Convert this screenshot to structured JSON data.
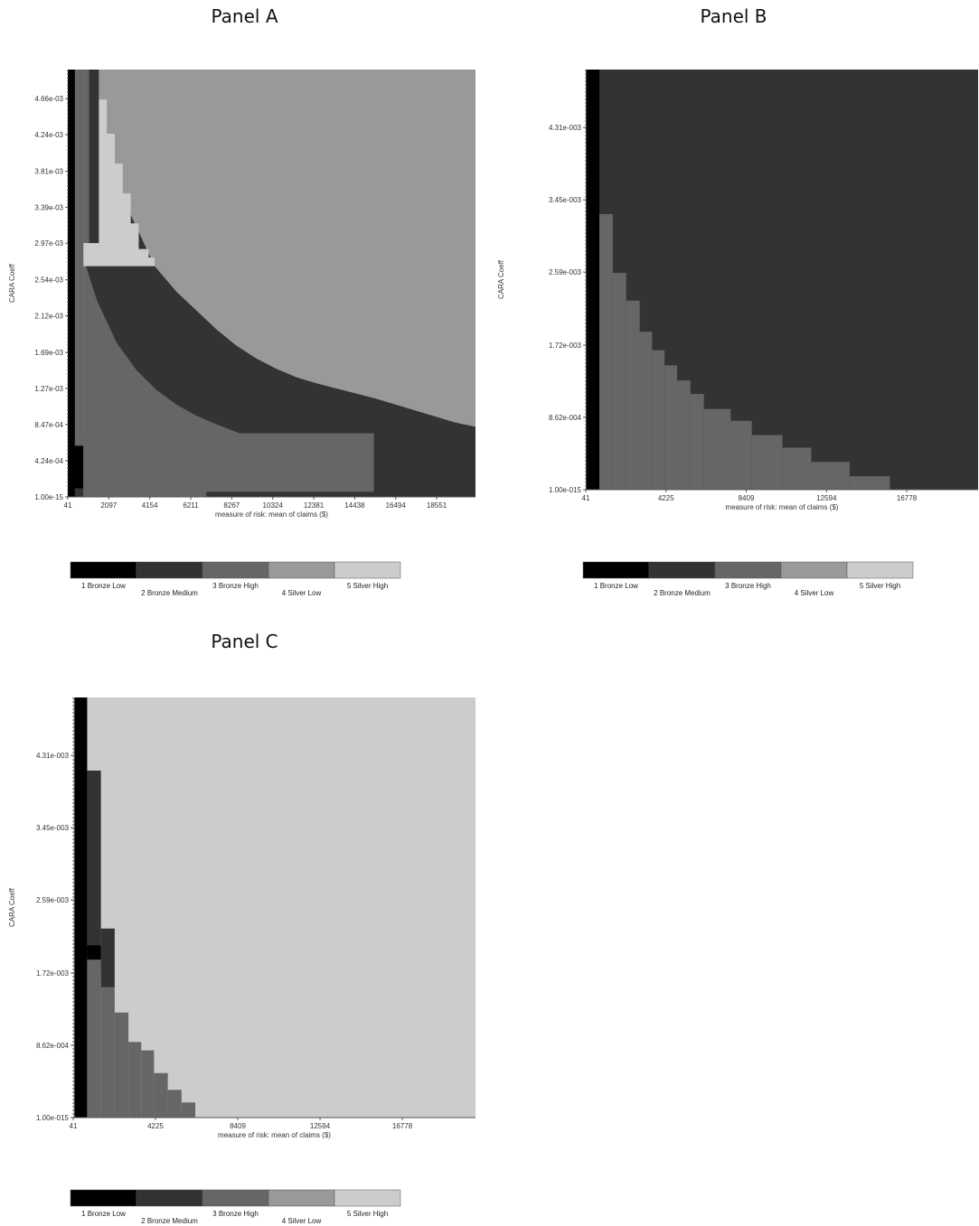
{
  "legend": {
    "levels": [
      {
        "code": 1,
        "label": "1 Bronze Low",
        "color": "#000000"
      },
      {
        "code": 2,
        "label": "2 Bronze Medium",
        "color": "#333333"
      },
      {
        "code": 3,
        "label": "3 Bronze High",
        "color": "#666666"
      },
      {
        "code": 4,
        "label": "4 Silver Low",
        "color": "#999999"
      },
      {
        "code": 5,
        "label": "5 Silver High",
        "color": "#cccccc"
      }
    ]
  },
  "chart_data": [
    {
      "type": "heatmap",
      "title": "Panel A",
      "xlabel": "measure of risk: mean of claims ($)",
      "ylabel": "CARA Coeff",
      "xlim": [
        41,
        20500
      ],
      "ylim": [
        0,
        0.005
      ],
      "x_ticks": [
        "41",
        "2097",
        "4154",
        "6211",
        "8267",
        "10324",
        "12381",
        "14438",
        "16494",
        "18551"
      ],
      "x_tick_values": [
        41,
        2097,
        4154,
        6211,
        8267,
        10324,
        12381,
        14438,
        16494,
        18551
      ],
      "y_ticks": [
        "1.00e-15",
        "4.24e-04",
        "8.47e-04",
        "1.27e-03",
        "1.69e-03",
        "2.12e-03",
        "2.54e-03",
        "2.97e-03",
        "3.39e-03",
        "3.81e-03",
        "4.24e-03",
        "4.66e-03"
      ],
      "y_tick_values": [
        0,
        0.000424,
        0.000847,
        0.00127,
        0.00169,
        0.00212,
        0.00254,
        0.00297,
        0.00339,
        0.00381,
        0.00424,
        0.00466
      ],
      "default_code": 4,
      "regions": [
        {
          "code": 1,
          "x0": 41,
          "x1": 400,
          "y0": 0,
          "y1": 0.005
        },
        {
          "code": 1,
          "x0": 41,
          "x1": 820,
          "y0": 0.0001,
          "y1": 0.0006
        },
        {
          "code": 3,
          "x0": 400,
          "x1": 820,
          "y0": 0.0006,
          "y1": 0.005
        },
        {
          "code": 2,
          "x0": 400,
          "x1": 820,
          "y0": 0,
          "y1": 0.0001
        },
        {
          "code": 3,
          "x0": 820,
          "x1": 15400,
          "y0": 0,
          "y1": 0.000745
        },
        {
          "code": 2,
          "x0": 7000,
          "x1": 15400,
          "y0": 0,
          "y1": 6e-05
        },
        {
          "code": 2,
          "x0": 15400,
          "x1": 20500,
          "y0": 0,
          "y1": 0.0001
        }
      ],
      "boundaries": [
        {
          "code": 5,
          "to": 4,
          "points": [
            [
              820,
              0.005
            ],
            [
              1600,
              0.005
            ],
            [
              1600,
              0.00465
            ],
            [
              2000,
              0.00465
            ],
            [
              2000,
              0.00425
            ],
            [
              2400,
              0.00425
            ],
            [
              2400,
              0.0039
            ],
            [
              2800,
              0.0039
            ],
            [
              2800,
              0.00355
            ],
            [
              3200,
              0.00355
            ],
            [
              3200,
              0.0032
            ],
            [
              3600,
              0.0032
            ],
            [
              3600,
              0.0029
            ],
            [
              4100,
              0.0029
            ],
            [
              4100,
              0.0028
            ],
            [
              4400,
              0.0028
            ],
            [
              4400,
              0.0027
            ]
          ]
        }
      ],
      "band_rows": [
        {
          "y0": 0.00297,
          "y1": 0.005,
          "cols": [
            [
              820,
              1100,
              3
            ],
            [
              1100,
              1600,
              2
            ],
            [
              1600,
              4400,
              5
            ]
          ]
        }
      ],
      "curves": [
        {
          "name": "lower",
          "points": [
            [
              820,
              0.0028
            ],
            [
              1500,
              0.0023
            ],
            [
              2500,
              0.0018
            ],
            [
              3500,
              0.00148
            ],
            [
              4500,
              0.00125
            ],
            [
              5500,
              0.00108
            ],
            [
              6500,
              0.00095
            ],
            [
              7500,
              0.00085
            ],
            [
              8500,
              0.00076
            ],
            [
              9500,
              0.00068
            ],
            [
              10500,
              0.0006
            ],
            [
              11500,
              0.00053
            ],
            [
              12500,
              0.00046
            ],
            [
              13500,
              0.00038
            ],
            [
              14500,
              0.00028
            ],
            [
              15400,
              0.0002
            ]
          ]
        },
        {
          "name": "upper",
          "points": [
            [
              1000,
              0.0046
            ],
            [
              1600,
              0.0042
            ],
            [
              2200,
              0.0038
            ],
            [
              2800,
              0.0035
            ],
            [
              3600,
              0.0031
            ],
            [
              4400,
              0.0027
            ],
            [
              5500,
              0.0024
            ],
            [
              6500,
              0.00218
            ],
            [
              7500,
              0.00196
            ],
            [
              8500,
              0.00177
            ],
            [
              9500,
              0.00162
            ],
            [
              10500,
              0.0015
            ],
            [
              11500,
              0.0014
            ],
            [
              12500,
              0.00133
            ],
            [
              13500,
              0.00127
            ],
            [
              14500,
              0.00121
            ],
            [
              15500,
              0.00115
            ],
            [
              16500,
              0.00108
            ],
            [
              17500,
              0.00101
            ],
            [
              18500,
              0.00094
            ],
            [
              19500,
              0.00087
            ],
            [
              20500,
              0.00082
            ]
          ]
        }
      ]
    },
    {
      "type": "heatmap",
      "title": "Panel B",
      "xlabel": "measure of risk: mean of claims ($)",
      "ylabel": "CARA Coeff",
      "xlim": [
        41,
        20500
      ],
      "ylim": [
        0,
        0.005
      ],
      "x_ticks": [
        "41",
        "4225",
        "8409",
        "12594",
        "16778"
      ],
      "x_tick_values": [
        41,
        4225,
        8409,
        12594,
        16778
      ],
      "y_ticks": [
        "1.00e-015",
        "8.62e-004",
        "1.72e-003",
        "2.59e-003",
        "3.45e-003",
        "4.31e-003"
      ],
      "y_tick_values": [
        0,
        0.000862,
        0.00172,
        0.00259,
        0.00345,
        0.00431
      ],
      "default_code": 2,
      "regions": [
        {
          "code": 1,
          "x0": 100,
          "x1": 750,
          "y0": 0,
          "y1": 0.005
        }
      ],
      "steps": {
        "code": 3,
        "x_start": 750,
        "points": [
          [
            1450,
            0.00328
          ],
          [
            2150,
            0.00258
          ],
          [
            2850,
            0.00225
          ],
          [
            3500,
            0.00188
          ],
          [
            4150,
            0.00166
          ],
          [
            4800,
            0.00148
          ],
          [
            5500,
            0.0013
          ],
          [
            6200,
            0.00114
          ],
          [
            7600,
            0.00096
          ],
          [
            8700,
            0.00082
          ],
          [
            10300,
            0.00065
          ],
          [
            11800,
            0.0005
          ],
          [
            13800,
            0.00033
          ],
          [
            15900,
            0.00016
          ]
        ]
      }
    },
    {
      "type": "heatmap",
      "title": "Panel C",
      "xlabel": "measure of risk: mean of claims ($)",
      "ylabel": "CARA Coeff",
      "xlim": [
        41,
        20500
      ],
      "ylim": [
        0,
        0.005
      ],
      "x_ticks": [
        "41",
        "4225",
        "8409",
        "12594",
        "16778"
      ],
      "x_tick_values": [
        41,
        4225,
        8409,
        12594,
        16778
      ],
      "y_ticks": [
        "1.00e-015",
        "8.62e-004",
        "1.72e-003",
        "2.59e-003",
        "3.45e-003",
        "4.31e-003"
      ],
      "y_tick_values": [
        0,
        0.000862,
        0.00172,
        0.00259,
        0.00345,
        0.00431
      ],
      "default_code": 5,
      "regions": [
        {
          "code": 1,
          "x0": 100,
          "x1": 750,
          "y0": 0,
          "y1": 0.005
        },
        {
          "code": 2,
          "x0": 750,
          "x1": 1450,
          "y0": 0.00172,
          "y1": 0.00413
        },
        {
          "code": 1,
          "x0": 750,
          "x1": 1450,
          "y0": 0.00172,
          "y1": 0.00205
        },
        {
          "code": 2,
          "x0": 1450,
          "x1": 2150,
          "y0": 0.00155,
          "y1": 0.00225
        }
      ],
      "steps": {
        "code": 3,
        "x_start": 750,
        "points": [
          [
            1450,
            0.00188
          ],
          [
            2150,
            0.00155
          ],
          [
            2850,
            0.00125
          ],
          [
            3500,
            0.0009
          ],
          [
            4150,
            0.0008
          ],
          [
            4850,
            0.00053
          ],
          [
            5550,
            0.00033
          ],
          [
            6250,
            0.00018
          ]
        ]
      }
    }
  ]
}
